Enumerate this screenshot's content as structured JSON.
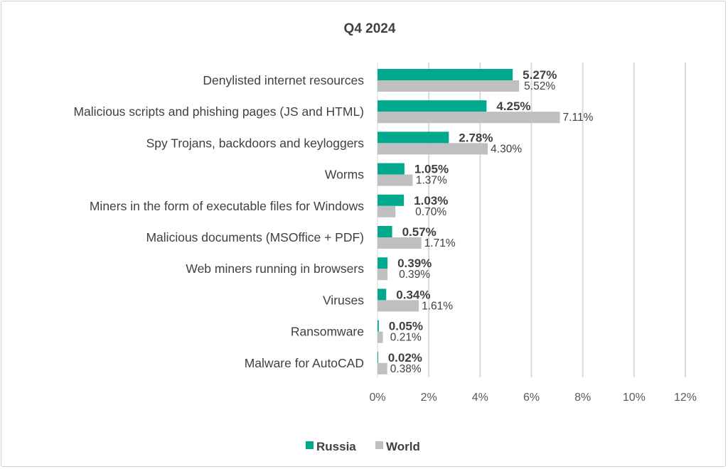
{
  "chart_data": {
    "type": "bar",
    "orientation": "horizontal",
    "title": "Q4 2024",
    "categories": [
      "Denylisted internet resources",
      "Malicious scripts and phishing pages (JS and HTML)",
      "Spy Trojans, backdoors and keyloggers",
      "Worms",
      "Miners in the form of executable files for Windows",
      "Malicious documents (MSOffice + PDF)",
      "Web miners running in browsers",
      "Viruses",
      "Ransomware",
      "Malware for AutoCAD"
    ],
    "series": [
      {
        "name": "Russia",
        "color": "#00A88E",
        "values": [
          5.27,
          4.25,
          2.78,
          1.05,
          1.03,
          0.57,
          0.39,
          0.34,
          0.05,
          0.02
        ],
        "labels": [
          "5.27%",
          "4.25%",
          "2.78%",
          "1.05%",
          "1.03%",
          "0.57%",
          "0.39%",
          "0.34%",
          "0.05%",
          "0.02%"
        ]
      },
      {
        "name": "World",
        "color": "#BFBFBF",
        "values": [
          5.52,
          7.11,
          4.3,
          1.37,
          0.7,
          1.71,
          0.39,
          1.61,
          0.21,
          0.38
        ],
        "labels": [
          "5.52%",
          "7.11%",
          "4.30%",
          "1.37%",
          "0.70%",
          "1.71%",
          "0.39%",
          "1.61%",
          "0.21%",
          "0.38%"
        ]
      }
    ],
    "xlim": [
      0,
      12
    ],
    "xticks": [
      0,
      2,
      4,
      6,
      8,
      10,
      12
    ],
    "xtick_labels": [
      "0%",
      "2%",
      "4%",
      "6%",
      "8%",
      "10%",
      "12%"
    ],
    "grid": "vertical",
    "legend": "bottom-center",
    "xlabel": "",
    "ylabel": ""
  }
}
